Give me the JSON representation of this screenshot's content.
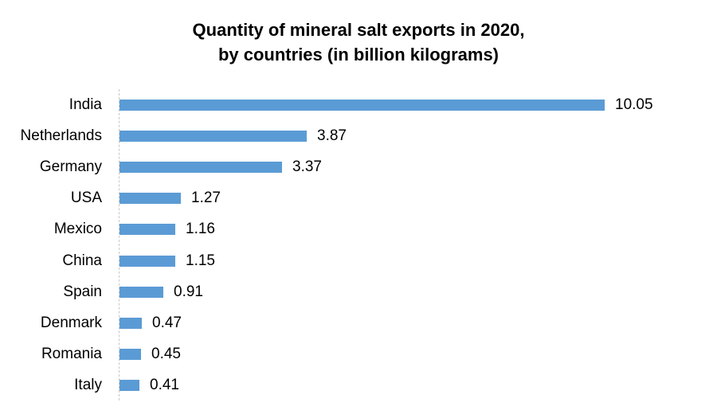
{
  "chart_data": {
    "type": "bar",
    "orientation": "horizontal",
    "title": "Quantity of mineral salt exports in 2020, by countries (in billion kilograms)",
    "title_lines": [
      "Quantity of mineral salt exports in 2020,",
      "by countries (in billion kilograms)"
    ],
    "xlabel": "",
    "ylabel": "",
    "categories": [
      "India",
      "Netherlands",
      "Germany",
      "USA",
      "Mexico",
      "China",
      "Spain",
      "Denmark",
      "Romania",
      "Italy"
    ],
    "values": [
      10.05,
      3.87,
      3.37,
      1.27,
      1.16,
      1.15,
      0.91,
      0.47,
      0.45,
      0.41
    ],
    "value_labels": [
      "10.05",
      "3.87",
      "3.37",
      "1.27",
      "1.16",
      "1.15",
      "0.91",
      "0.47",
      "0.45",
      "0.41"
    ],
    "xlim": [
      0,
      10.05
    ],
    "grid": false,
    "legend": null,
    "bar_color": "#5b9bd5"
  }
}
